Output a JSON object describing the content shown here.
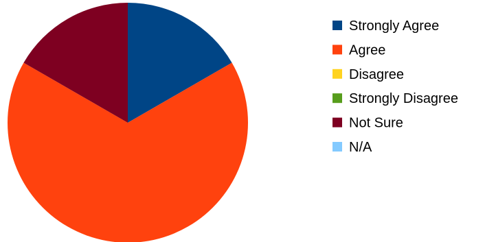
{
  "chart_data": {
    "type": "pie",
    "title": "",
    "legend_position": "right",
    "series": [
      {
        "name": "Strongly Agree",
        "value": 1,
        "color": "#004586"
      },
      {
        "name": "Agree",
        "value": 4,
        "color": "#ff420e"
      },
      {
        "name": "Disagree",
        "value": 0,
        "color": "#ffd320"
      },
      {
        "name": "Strongly Disagree",
        "value": 0,
        "color": "#579d1c"
      },
      {
        "name": "Not Sure",
        "value": 1,
        "color": "#7e0021"
      },
      {
        "name": "N/A",
        "value": 0,
        "color": "#83caff"
      }
    ],
    "start_angle_deg": 0,
    "direction": "clockwise"
  }
}
